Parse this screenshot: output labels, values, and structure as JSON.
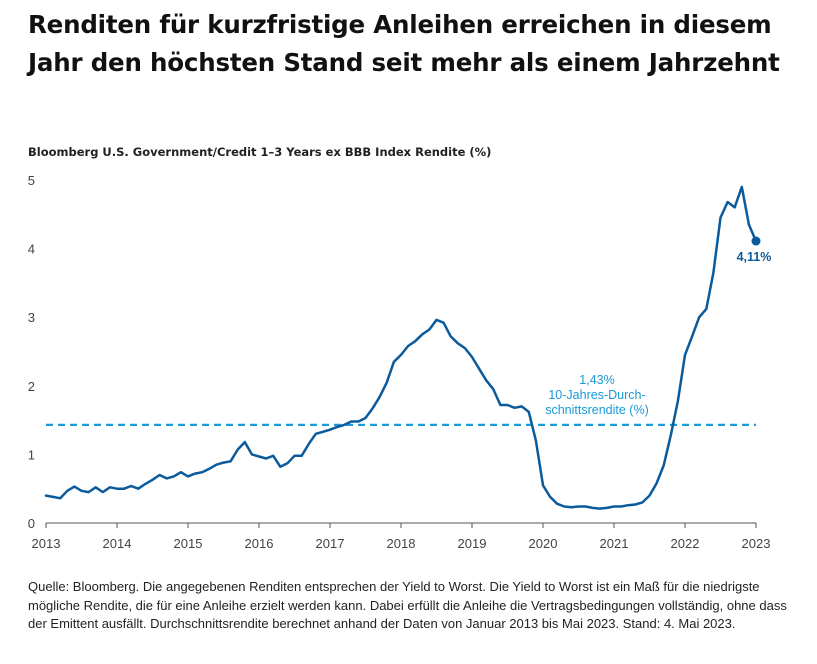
{
  "title": "Renditen für kurzfristige Anleihen erreichen in diesem Jahr den höchsten Stand seit mehr als einem Jahrzehnt",
  "subtitle": "Bloomberg U.S. Government/Credit 1–3 Years ex BBB Index Rendite (%)",
  "source": "Quelle: Bloomberg. Die angegebenen Renditen entsprechen der Yield to Worst. Die Yield to Worst ist ein Maß für die niedrigste mögliche Rendite, die für eine Anleihe erzielt werden kann. Dabei erfüllt die Anleihe die Vertragsbedingungen vollständig, ohne dass der Emittent ausfällt. Durchschnittsrendite berechnet anhand der Daten von Januar 2013 bis Mai 2023. Stand: 4. Mai 2023.",
  "colors": {
    "line": "#0a5a9c",
    "average": "#1a9ad6",
    "axis": "#555555"
  },
  "chart_data": {
    "type": "line",
    "title": "Bloomberg U.S. Government/Credit 1–3 Years ex BBB Index Rendite (%)",
    "xlabel": "",
    "ylabel": "",
    "xlim": [
      2013,
      2023
    ],
    "ylim": [
      0,
      5
    ],
    "x_ticks": [
      "2013",
      "2014",
      "2015",
      "2016",
      "2017",
      "2018",
      "2019",
      "2020",
      "2021",
      "2022",
      "2023"
    ],
    "y_ticks": [
      "0",
      "1",
      "2",
      "3",
      "4",
      "5"
    ],
    "grid": false,
    "average": {
      "value": 1.43,
      "label": [
        "1,43%",
        "10-Jahres-Durch-",
        "schnittsrendite (%)"
      ]
    },
    "end_label": {
      "x": 2023.0,
      "y": 4.11,
      "text": "4,11%"
    },
    "series": [
      {
        "x": [
          2013.0,
          2013.1,
          2013.2,
          2013.3,
          2013.4,
          2013.5,
          2013.6,
          2013.7,
          2013.8,
          2013.9,
          2014.0,
          2014.1,
          2014.2,
          2014.3,
          2014.4,
          2014.5,
          2014.6,
          2014.7,
          2014.8,
          2014.9,
          2015.0,
          2015.1,
          2015.2,
          2015.3,
          2015.4,
          2015.5,
          2015.6,
          2015.7,
          2015.8,
          2015.9,
          2016.0,
          2016.1,
          2016.2,
          2016.3,
          2016.4,
          2016.5,
          2016.6,
          2016.7,
          2016.8,
          2016.9,
          2017.0,
          2017.1,
          2017.2,
          2017.3,
          2017.4,
          2017.5,
          2017.6,
          2017.7,
          2017.8,
          2017.9,
          2018.0,
          2018.1,
          2018.2,
          2018.3,
          2018.4,
          2018.5,
          2018.6,
          2018.7,
          2018.8,
          2018.9,
          2019.0,
          2019.1,
          2019.2,
          2019.3,
          2019.4,
          2019.5,
          2019.6,
          2019.7,
          2019.8,
          2019.9,
          2020.0,
          2020.1,
          2020.2,
          2020.3,
          2020.4,
          2020.5,
          2020.6,
          2020.7,
          2020.8,
          2020.9,
          2021.0,
          2021.1,
          2021.2,
          2021.3,
          2021.4,
          2021.5,
          2021.6,
          2021.7,
          2021.8,
          2021.9,
          2022.0,
          2022.1,
          2022.2,
          2022.3,
          2022.4,
          2022.5,
          2022.6,
          2022.7,
          2022.8,
          2022.9,
          2023.0
        ],
        "values": [
          0.4,
          0.38,
          0.36,
          0.47,
          0.53,
          0.47,
          0.45,
          0.52,
          0.45,
          0.52,
          0.5,
          0.5,
          0.54,
          0.5,
          0.57,
          0.63,
          0.7,
          0.65,
          0.68,
          0.74,
          0.68,
          0.72,
          0.74,
          0.79,
          0.85,
          0.88,
          0.9,
          1.07,
          1.18,
          1.0,
          0.97,
          0.94,
          0.98,
          0.82,
          0.87,
          0.98,
          0.98,
          1.15,
          1.3,
          1.33,
          1.36,
          1.4,
          1.43,
          1.48,
          1.48,
          1.53,
          1.67,
          1.84,
          2.05,
          2.35,
          2.45,
          2.58,
          2.65,
          2.75,
          2.82,
          2.96,
          2.92,
          2.72,
          2.62,
          2.55,
          2.42,
          2.25,
          2.08,
          1.95,
          1.72,
          1.72,
          1.68,
          1.7,
          1.62,
          1.2,
          0.55,
          0.38,
          0.28,
          0.24,
          0.23,
          0.24,
          0.24,
          0.22,
          0.21,
          0.22,
          0.24,
          0.24,
          0.26,
          0.27,
          0.3,
          0.4,
          0.58,
          0.84,
          1.28,
          1.78,
          2.45,
          2.72,
          3.0,
          3.12,
          3.65,
          4.45,
          4.68,
          4.6,
          4.9,
          4.35,
          4.11
        ]
      }
    ]
  }
}
